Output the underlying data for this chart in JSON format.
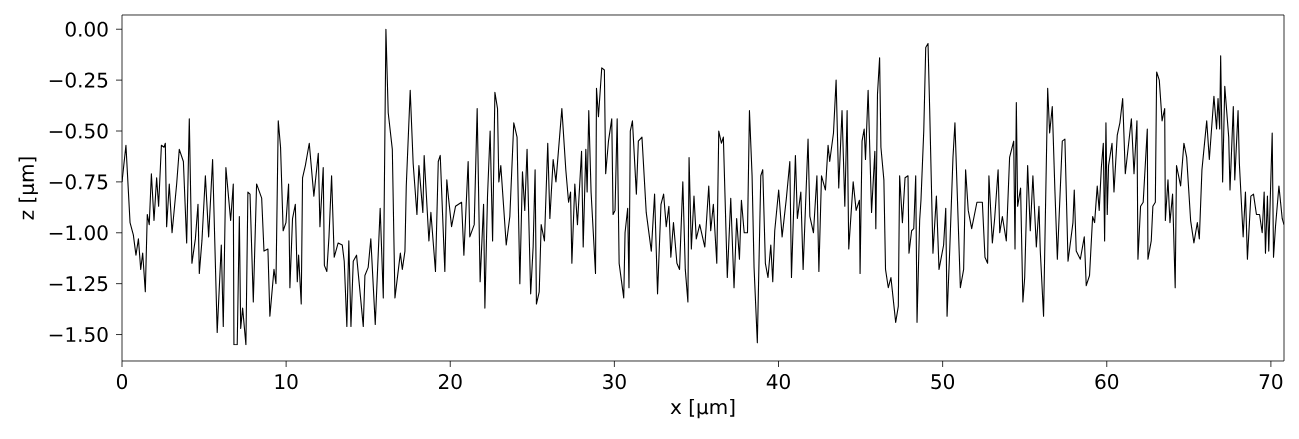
{
  "chart_data": {
    "type": "line",
    "xlabel": "x [µm]",
    "ylabel": "z [µm]",
    "color": "#000000",
    "xlim": [
      0,
      70.8
    ],
    "ylim": [
      -1.63,
      0.07
    ],
    "xticks": [
      0,
      10,
      20,
      30,
      40,
      50,
      60,
      70
    ],
    "yticks": [
      {
        "value": 0,
        "label": "0.00"
      },
      {
        "value": -0.25,
        "label": "−0.25"
      },
      {
        "value": -0.5,
        "label": "−0.50"
      },
      {
        "value": -0.75,
        "label": "−0.75"
      },
      {
        "value": -1.0,
        "label": "−1.00"
      },
      {
        "value": -1.25,
        "label": "−1.25"
      },
      {
        "value": -1.5,
        "label": "−1.50"
      }
    ],
    "x": [
      0,
      0.24,
      0.49,
      0.69,
      0.85,
      1.0,
      1.14,
      1.26,
      1.42,
      1.54,
      1.66,
      1.79,
      1.95,
      2.11,
      2.23,
      2.4,
      2.56,
      2.64,
      2.72,
      2.88,
      3.05,
      3.33,
      3.49,
      3.74,
      3.94,
      4.1,
      4.26,
      4.47,
      4.63,
      4.71,
      4.87,
      5.08,
      5.28,
      5.52,
      5.8,
      6.05,
      6.17,
      6.33,
      6.62,
      6.78,
      6.82,
      7.02,
      7.15,
      7.23,
      7.35,
      7.55,
      7.67,
      7.8,
      8.0,
      8.2,
      8.51,
      8.65,
      8.89,
      9.01,
      9.26,
      9.38,
      9.52,
      9.66,
      9.82,
      9.99,
      10.15,
      10.23,
      10.39,
      10.56,
      10.68,
      10.76,
      10.92,
      11.0,
      11.17,
      11.41,
      11.69,
      11.96,
      12.06,
      12.26,
      12.33,
      12.48,
      12.61,
      12.77,
      12.93,
      13.17,
      13.42,
      13.54,
      13.7,
      13.82,
      13.95,
      14.09,
      14.29,
      14.7,
      14.8,
      15.0,
      15.16,
      15.43,
      15.73,
      15.92,
      16.08,
      16.22,
      16.47,
      16.63,
      16.96,
      17.08,
      17.24,
      17.32,
      17.56,
      17.74,
      17.97,
      18.09,
      18.33,
      18.41,
      18.7,
      18.82,
      19.1,
      19.27,
      19.39,
      19.67,
      19.79,
      19.87,
      20.08,
      20.32,
      20.69,
      20.83,
      21.09,
      21.19,
      21.46,
      21.64,
      21.82,
      22.03,
      22.11,
      22.27,
      22.43,
      22.58,
      22.72,
      22.88,
      22.96,
      23.08,
      23.25,
      23.41,
      23.63,
      23.87,
      24.07,
      24.24,
      24.4,
      24.54,
      24.68,
      24.9,
      25.05,
      25.17,
      25.25,
      25.42,
      25.54,
      25.74,
      25.94,
      26.07,
      26.27,
      26.44,
      26.8,
      27.04,
      27.21,
      27.33,
      27.41,
      27.59,
      27.75,
      28.0,
      28.1,
      28.26,
      28.34,
      28.44,
      28.58,
      28.85,
      28.91,
      29.03,
      29.23,
      29.39,
      29.47,
      29.64,
      29.84,
      29.92,
      30.04,
      30.17,
      30.29,
      30.57,
      30.65,
      30.81,
      30.89,
      30.97,
      31.1,
      31.34,
      31.46,
      31.68,
      31.94,
      32.25,
      32.45,
      32.63,
      32.84,
      33.0,
      33.16,
      33.32,
      33.44,
      33.6,
      33.81,
      33.97,
      34.17,
      34.32,
      34.48,
      34.55,
      34.69,
      34.85,
      34.99,
      35.2,
      35.51,
      35.75,
      35.87,
      36.03,
      36.24,
      36.36,
      36.52,
      36.64,
      36.88,
      37.09,
      37.29,
      37.45,
      37.62,
      37.74,
      37.91,
      38.11,
      38.23,
      38.39,
      38.51,
      38.71,
      38.92,
      39.04,
      39.2,
      39.36,
      39.53,
      39.65,
      39.77,
      40.01,
      40.22,
      40.48,
      40.69,
      40.79,
      41.03,
      41.15,
      41.36,
      41.5,
      41.8,
      41.91,
      42.13,
      42.34,
      42.46,
      42.62,
      42.86,
      43.02,
      43.12,
      43.35,
      43.51,
      43.67,
      43.87,
      44.04,
      44.18,
      44.28,
      44.55,
      44.73,
      44.93,
      44.97,
      45.09,
      45.22,
      45.3,
      45.46,
      45.67,
      45.87,
      45.93,
      46.03,
      46.16,
      46.24,
      46.42,
      46.52,
      46.69,
      46.85,
      47.14,
      47.3,
      47.38,
      47.55,
      47.71,
      47.89,
      47.95,
      48.11,
      48.24,
      48.36,
      48.44,
      48.6,
      48.68,
      48.85,
      48.97,
      49.11,
      49.21,
      49.41,
      49.62,
      49.78,
      50.06,
      50.19,
      50.27,
      50.43,
      50.63,
      50.75,
      51.08,
      51.28,
      51.4,
      51.56,
      51.77,
      52.09,
      52.42,
      52.58,
      52.74,
      52.82,
      53.03,
      53.17,
      53.38,
      53.48,
      53.64,
      53.88,
      54.08,
      54.33,
      54.41,
      54.49,
      54.57,
      54.75,
      54.89,
      55.0,
      55.18,
      55.34,
      55.5,
      55.71,
      55.87,
      55.95,
      56.15,
      56.4,
      56.52,
      56.68,
      56.84,
      56.99,
      57.29,
      57.45,
      57.64,
      57.94,
      58.02,
      58.14,
      58.39,
      58.63,
      58.75,
      58.95,
      59.14,
      59.26,
      59.42,
      59.54,
      59.67,
      59.79,
      59.87,
      59.95,
      60.03,
      60.11,
      60.32,
      60.44,
      60.64,
      60.8,
      60.97,
      61.13,
      61.5,
      61.66,
      61.84,
      61.9,
      62.06,
      62.22,
      62.47,
      62.51,
      62.71,
      62.81,
      62.96,
      63.04,
      63.2,
      63.37,
      63.53,
      63.57,
      63.73,
      63.85,
      64.01,
      64.17,
      64.25,
      64.5,
      64.7,
      64.87,
      65.11,
      65.31,
      65.52,
      65.64,
      65.8,
      66.09,
      66.25,
      66.53,
      66.69,
      66.78,
      66.88,
      66.94,
      67.06,
      67.19,
      67.43,
      67.51,
      67.71,
      67.8,
      68.0,
      68.08,
      68.31,
      68.45,
      68.57,
      68.78,
      68.94,
      69.12,
      69.31,
      69.47,
      69.59,
      69.67,
      69.79,
      69.87,
      70.08,
      70.16,
      70.28,
      70.49,
      70.69,
      70.8
    ],
    "values": [
      -0.75,
      -0.57,
      -0.95,
      -1.01,
      -1.11,
      -1.03,
      -1.18,
      -1.1,
      -1.29,
      -0.91,
      -0.96,
      -0.71,
      -0.94,
      -0.73,
      -0.87,
      -0.57,
      -0.58,
      -0.56,
      -0.97,
      -0.76,
      -1.0,
      -0.76,
      -0.59,
      -0.65,
      -1.05,
      -0.44,
      -1.15,
      -1.03,
      -0.86,
      -1.2,
      -1.04,
      -0.72,
      -1.02,
      -0.64,
      -1.49,
      -1.06,
      -1.46,
      -0.68,
      -0.94,
      -0.76,
      -1.55,
      -1.55,
      -0.92,
      -1.47,
      -1.37,
      -1.55,
      -0.8,
      -0.81,
      -1.34,
      -0.76,
      -0.83,
      -1.09,
      -1.08,
      -1.41,
      -1.18,
      -1.25,
      -0.45,
      -0.58,
      -0.99,
      -0.95,
      -0.76,
      -1.27,
      -0.93,
      -0.86,
      -1.24,
      -1.11,
      -1.35,
      -0.73,
      -0.67,
      -0.56,
      -0.82,
      -0.61,
      -0.97,
      -0.68,
      -1.16,
      -1.19,
      -1.02,
      -0.72,
      -1.12,
      -1.05,
      -1.06,
      -1.14,
      -1.46,
      -1.04,
      -1.46,
      -1.14,
      -1.11,
      -1.46,
      -1.21,
      -1.17,
      -1.03,
      -1.45,
      -0.88,
      -1.32,
      0.0,
      -0.41,
      -0.59,
      -1.32,
      -1.1,
      -1.18,
      -1.09,
      -0.77,
      -0.3,
      -0.66,
      -0.91,
      -0.67,
      -0.9,
      -0.62,
      -1.04,
      -0.9,
      -1.19,
      -0.65,
      -0.62,
      -1.19,
      -0.74,
      -0.81,
      -0.97,
      -0.87,
      -0.85,
      -1.11,
      -0.65,
      -1.02,
      -0.96,
      -0.39,
      -1.24,
      -0.86,
      -1.37,
      -0.82,
      -0.5,
      -1.04,
      -0.31,
      -0.39,
      -0.75,
      -0.67,
      -0.87,
      -1.06,
      -0.92,
      -0.46,
      -0.53,
      -1.25,
      -0.7,
      -0.89,
      -0.59,
      -1.3,
      -1.07,
      -0.69,
      -1.35,
      -1.29,
      -0.96,
      -1.04,
      -0.56,
      -0.93,
      -0.64,
      -0.75,
      -0.39,
      -0.69,
      -0.85,
      -0.8,
      -1.15,
      -0.76,
      -0.96,
      -0.6,
      -1.07,
      -0.59,
      -0.8,
      -0.4,
      -0.8,
      -1.2,
      -0.29,
      -0.43,
      -0.19,
      -0.2,
      -0.71,
      -0.55,
      -0.44,
      -0.91,
      -0.89,
      -0.44,
      -1.15,
      -1.32,
      -1.0,
      -0.88,
      -1.27,
      -0.5,
      -0.45,
      -0.81,
      -0.55,
      -0.53,
      -0.9,
      -1.09,
      -0.81,
      -1.3,
      -0.86,
      -0.81,
      -0.97,
      -0.87,
      -1.12,
      -0.95,
      -1.15,
      -1.18,
      -0.75,
      -1.18,
      -1.34,
      -0.63,
      -1.08,
      -0.82,
      -1.03,
      -0.96,
      -1.07,
      -0.77,
      -0.99,
      -0.86,
      -1.15,
      -0.5,
      -0.56,
      -0.53,
      -1.22,
      -0.83,
      -1.27,
      -0.93,
      -1.13,
      -0.84,
      -1.0,
      -1.0,
      -0.4,
      -0.72,
      -1.17,
      -1.54,
      -0.72,
      -0.69,
      -1.15,
      -1.22,
      -1.06,
      -1.24,
      -0.99,
      -0.79,
      -1.02,
      -0.83,
      -0.65,
      -1.22,
      -0.62,
      -0.93,
      -0.8,
      -1.18,
      -0.54,
      -0.92,
      -1.0,
      -0.72,
      -1.19,
      -0.72,
      -0.79,
      -0.57,
      -0.65,
      -0.51,
      -0.25,
      -0.78,
      -0.4,
      -0.87,
      -0.4,
      -1.08,
      -0.75,
      -0.89,
      -0.84,
      -1.2,
      -0.55,
      -0.49,
      -0.64,
      -0.3,
      -0.9,
      -0.6,
      -0.98,
      -0.32,
      -0.14,
      -0.58,
      -0.74,
      -1.18,
      -1.27,
      -1.22,
      -1.44,
      -1.36,
      -0.72,
      -0.95,
      -0.73,
      -0.72,
      -1.1,
      -0.99,
      -0.98,
      -0.72,
      -1.44,
      -0.94,
      -0.84,
      -0.5,
      -0.09,
      -0.07,
      -0.39,
      -1.1,
      -0.82,
      -1.18,
      -1.06,
      -0.88,
      -1.41,
      -1.09,
      -0.63,
      -0.46,
      -1.27,
      -1.18,
      -0.69,
      -0.89,
      -0.98,
      -0.85,
      -0.85,
      -1.12,
      -1.15,
      -0.72,
      -1.05,
      -0.93,
      -0.69,
      -1.0,
      -0.92,
      -1.04,
      -0.63,
      -0.55,
      -1.08,
      -0.36,
      -0.87,
      -0.78,
      -1.34,
      -1.22,
      -0.67,
      -0.99,
      -0.72,
      -1.07,
      -0.87,
      -1.09,
      -1.41,
      -0.29,
      -0.51,
      -0.38,
      -0.79,
      -1.13,
      -0.55,
      -0.54,
      -1.14,
      -0.95,
      -0.79,
      -1.09,
      -1.13,
      -1.02,
      -1.26,
      -1.21,
      -0.92,
      -0.95,
      -0.77,
      -0.89,
      -0.68,
      -0.56,
      -1.04,
      -0.46,
      -0.91,
      -0.67,
      -0.56,
      -0.8,
      -0.52,
      -0.46,
      -0.34,
      -0.71,
      -0.44,
      -0.71,
      -0.45,
      -1.13,
      -0.87,
      -0.85,
      -0.49,
      -1.13,
      -1.04,
      -0.87,
      -0.85,
      -0.21,
      -0.25,
      -0.45,
      -0.39,
      -0.94,
      -0.74,
      -0.95,
      -0.81,
      -1.27,
      -0.67,
      -0.77,
      -0.56,
      -0.63,
      -0.94,
      -1.05,
      -0.95,
      -1.03,
      -0.69,
      -0.45,
      -0.64,
      -0.33,
      -0.49,
      -0.34,
      -0.49,
      -0.13,
      -0.75,
      -0.28,
      -0.53,
      -0.79,
      -0.38,
      -0.74,
      -0.4,
      -0.66,
      -1.02,
      -0.8,
      -1.13,
      -0.82,
      -0.81,
      -0.91,
      -0.91,
      -1.0,
      -0.8,
      -1.1,
      -0.82,
      -1.09,
      -0.51,
      -1.12,
      -0.97,
      -0.77,
      -0.93,
      -0.96
    ]
  }
}
